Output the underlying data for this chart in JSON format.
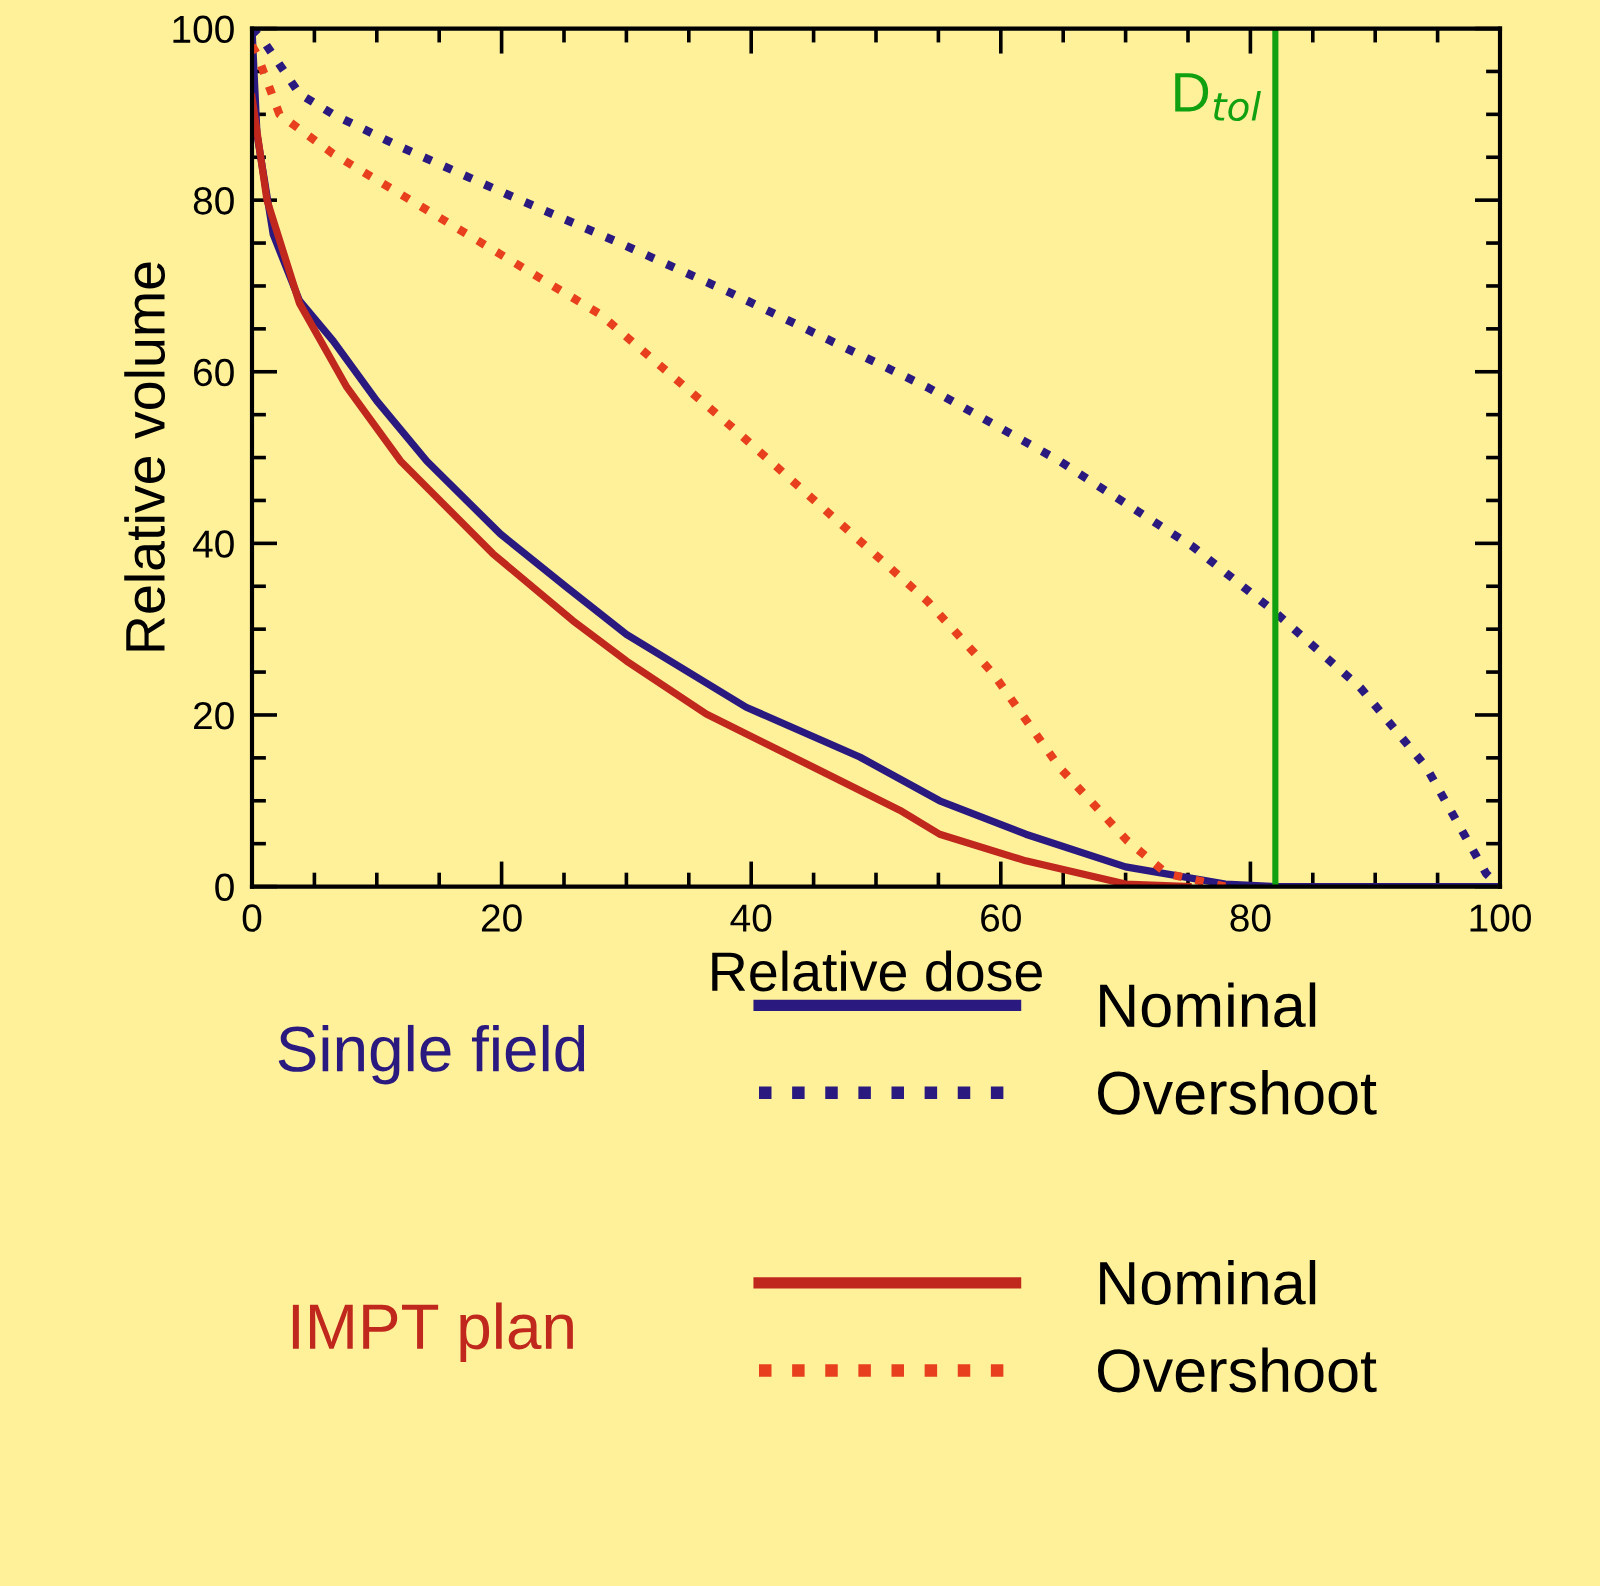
{
  "chart_data": {
    "type": "line",
    "xlabel": "Relative dose",
    "ylabel": "Relative volume",
    "xlim": [
      0,
      100
    ],
    "ylim": [
      0,
      100
    ],
    "xticks": [
      0,
      20,
      40,
      60,
      80,
      100
    ],
    "yticks": [
      0,
      20,
      40,
      60,
      80,
      100
    ],
    "grid": false,
    "legend": "bottom",
    "marker": "none",
    "annotations": [
      "Single field",
      "IMPT plan"
    ],
    "ref_lines": [
      {
        "axis": "x",
        "value": 82,
        "label": "D$_{tol}$",
        "color": "#10a010",
        "line_style": "solid"
      }
    ],
    "series": [
      {
        "name": "Nominal",
        "color": "#2a1a80",
        "line_style": "solid",
        "x": [
          0,
          0.4,
          1.7,
          3.8,
          6.5,
          10,
          14,
          19.9,
          25.2,
          30,
          39.6,
          48.7,
          55.1,
          62,
          70,
          78,
          82,
          100
        ],
        "values": [
          100,
          87.7,
          76,
          68.3,
          63.6,
          56.6,
          49.6,
          41.1,
          34.9,
          29.4,
          20.9,
          15.1,
          10,
          6.1,
          2.3,
          0.3,
          0,
          0
        ]
      },
      {
        "name": "Overshoot",
        "color": "#2a1a80",
        "line_style": "dotted",
        "x": [
          0,
          0.9,
          3.8,
          6.5,
          11.9,
          20.4,
          29,
          38.5,
          51.4,
          54.1,
          64.7,
          75.4,
          81.8,
          88.8,
          94.1,
          98.9,
          100
        ],
        "values": [
          100,
          98.6,
          92.4,
          90,
          86.2,
          80.7,
          75.3,
          69.1,
          60.1,
          58.2,
          49.6,
          39.6,
          32.2,
          23.2,
          13.9,
          1.5,
          0
        ]
      },
      {
        "name": "Nominal",
        "color": "#c0281e",
        "line_style": "solid",
        "x": [
          0,
          1.2,
          3.8,
          7.6,
          11.9,
          19.3,
          25.7,
          30,
          36.4,
          43.9,
          51.9,
          55.1,
          62,
          70,
          75
        ],
        "values": [
          92,
          80,
          68,
          58.2,
          49.6,
          38.8,
          31,
          26.3,
          20.1,
          14.7,
          8.9,
          6.1,
          3,
          0.3,
          0
        ]
      },
      {
        "name": "Overshoot",
        "color": "#e8401e",
        "line_style": "dotted",
        "x": [
          0,
          0.4,
          2.2,
          6.5,
          11.9,
          19.9,
          27.9,
          38.5,
          48.7,
          54.1,
          59.4,
          64.7,
          70.1,
          73.3,
          78
        ],
        "values": [
          98,
          97,
          90,
          85.4,
          80.7,
          73.7,
          66.7,
          53.5,
          40.3,
          33.3,
          24.8,
          13.9,
          5.4,
          1.5,
          0
        ]
      }
    ]
  }
}
